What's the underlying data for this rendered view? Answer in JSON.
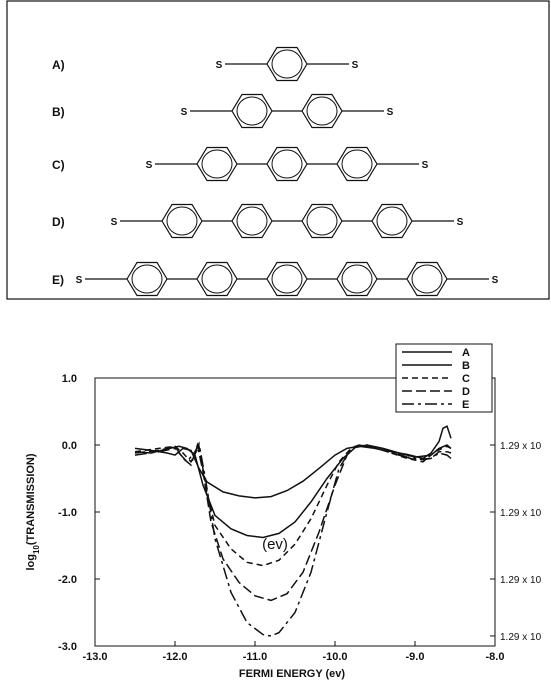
{
  "molecules": {
    "items": [
      {
        "label": "A)",
        "rings": 1
      },
      {
        "label": "B)",
        "rings": 2
      },
      {
        "label": "C)",
        "rings": 3
      },
      {
        "label": "D)",
        "rings": 4
      },
      {
        "label": "E)",
        "rings": 5
      }
    ],
    "end_atom": "S"
  },
  "chart_data": {
    "type": "line",
    "xlabel": "FERMI ENERGY (ev)",
    "ylabel": "log10(TRANSMISSION)",
    "ylabel_base": "log",
    "ylabel_sub": "10",
    "ylabel_rest": "(TRANSMISSION)",
    "xlim": [
      -13.0,
      -8.0
    ],
    "ylim": [
      -3.0,
      1.0
    ],
    "xticks": [
      -13.0,
      -12.0,
      -11.0,
      -10.0,
      -9.0,
      -8.0
    ],
    "xtick_labels": [
      "-13.0",
      "-12.0",
      "-11.0",
      "-10.0",
      "-9.0",
      "-8.0"
    ],
    "yticks": [
      1.0,
      0.0,
      -1.0,
      -2.0,
      -3.0
    ],
    "ytick_labels": [
      "1.0",
      "0.0",
      "-1.0",
      "-2.0",
      "-3.0"
    ],
    "right_ticks": [
      0.0,
      -1.0,
      -2.0,
      -2.85
    ],
    "right_tick_labels": [
      "1.29 x 10",
      "1.29 x 10",
      "1.29 x 10",
      "1.29 x 10"
    ],
    "annotation": "(ev)",
    "annotation_at": [
      -10.75,
      -1.55
    ],
    "legend": "top-right",
    "series": [
      {
        "name": "A",
        "dash": "",
        "x": [
          -12.5,
          -12.3,
          -12.1,
          -12.0,
          -11.9,
          -11.8,
          -11.7,
          -11.6,
          -11.4,
          -11.2,
          -11.0,
          -10.8,
          -10.6,
          -10.4,
          -10.2,
          -10.0,
          -9.85,
          -9.7,
          -9.5,
          -9.3,
          -9.1,
          -8.9,
          -8.8,
          -8.7,
          -8.65,
          -8.6,
          -8.55
        ],
        "y": [
          -0.05,
          -0.08,
          -0.12,
          -0.15,
          -0.05,
          -0.08,
          -0.35,
          -0.55,
          -0.7,
          -0.76,
          -0.79,
          -0.77,
          -0.68,
          -0.54,
          -0.35,
          -0.15,
          -0.05,
          -0.02,
          -0.05,
          -0.1,
          -0.14,
          -0.2,
          -0.12,
          0.05,
          0.25,
          0.28,
          0.1
        ]
      },
      {
        "name": "B",
        "dash": "",
        "x": [
          -12.5,
          -12.3,
          -12.1,
          -11.95,
          -11.85,
          -11.75,
          -11.65,
          -11.5,
          -11.3,
          -11.1,
          -10.9,
          -10.7,
          -10.5,
          -10.3,
          -10.1,
          -9.9,
          -9.75,
          -9.6,
          -9.4,
          -9.2,
          -9.0,
          -8.8,
          -8.7,
          -8.6,
          -8.55
        ],
        "y": [
          -0.1,
          -0.12,
          -0.06,
          -0.02,
          -0.05,
          -0.15,
          -0.6,
          -1.05,
          -1.25,
          -1.35,
          -1.38,
          -1.32,
          -1.15,
          -0.85,
          -0.5,
          -0.2,
          -0.04,
          0.0,
          -0.05,
          -0.12,
          -0.18,
          -0.15,
          -0.05,
          0.0,
          -0.05
        ]
      },
      {
        "name": "C",
        "dash": "6 4",
        "x": [
          -12.5,
          -12.2,
          -12.0,
          -11.9,
          -11.8,
          -11.7,
          -11.6,
          -11.5,
          -11.3,
          -11.1,
          -10.9,
          -10.7,
          -10.5,
          -10.3,
          -10.1,
          -9.95,
          -9.8,
          -9.7,
          -9.5,
          -9.3,
          -9.1,
          -8.9,
          -8.75,
          -8.6,
          -8.55
        ],
        "y": [
          -0.1,
          -0.05,
          -0.02,
          -0.12,
          -0.25,
          -0.02,
          -0.7,
          -1.2,
          -1.55,
          -1.75,
          -1.8,
          -1.72,
          -1.48,
          -1.1,
          -0.6,
          -0.25,
          -0.05,
          0.0,
          -0.03,
          -0.12,
          -0.2,
          -0.25,
          -0.1,
          -0.02,
          -0.05
        ]
      },
      {
        "name": "D",
        "dash": "10 4",
        "x": [
          -12.5,
          -12.2,
          -12.0,
          -11.9,
          -11.8,
          -11.72,
          -11.65,
          -11.55,
          -11.4,
          -11.2,
          -11.0,
          -10.8,
          -10.6,
          -10.4,
          -10.2,
          -10.0,
          -9.85,
          -9.75,
          -9.6,
          -9.4,
          -9.2,
          -9.0,
          -8.8,
          -8.7,
          -8.6,
          -8.55
        ],
        "y": [
          -0.12,
          -0.08,
          -0.02,
          -0.2,
          -0.3,
          0.0,
          -0.4,
          -1.15,
          -1.7,
          -2.05,
          -2.25,
          -2.32,
          -2.22,
          -1.9,
          -1.3,
          -0.6,
          -0.15,
          -0.02,
          0.0,
          -0.08,
          -0.15,
          -0.22,
          -0.2,
          -0.1,
          -0.1,
          -0.12
        ]
      },
      {
        "name": "E",
        "dash": "12 4 3 4",
        "x": [
          -12.5,
          -12.2,
          -12.0,
          -11.85,
          -11.75,
          -11.7,
          -11.62,
          -11.5,
          -11.3,
          -11.1,
          -10.9,
          -10.8,
          -10.7,
          -10.5,
          -10.3,
          -10.1,
          -9.95,
          -9.8,
          -9.7,
          -9.5,
          -9.3,
          -9.1,
          -8.9,
          -8.8,
          -8.7,
          -8.6,
          -8.55
        ],
        "y": [
          -0.15,
          -0.1,
          -0.05,
          -0.25,
          -0.1,
          0.02,
          -0.5,
          -1.4,
          -2.2,
          -2.65,
          -2.83,
          -2.85,
          -2.8,
          -2.5,
          -1.9,
          -1.0,
          -0.35,
          -0.06,
          0.0,
          -0.05,
          -0.1,
          -0.18,
          -0.22,
          -0.2,
          -0.12,
          -0.15,
          -0.2
        ]
      }
    ]
  }
}
